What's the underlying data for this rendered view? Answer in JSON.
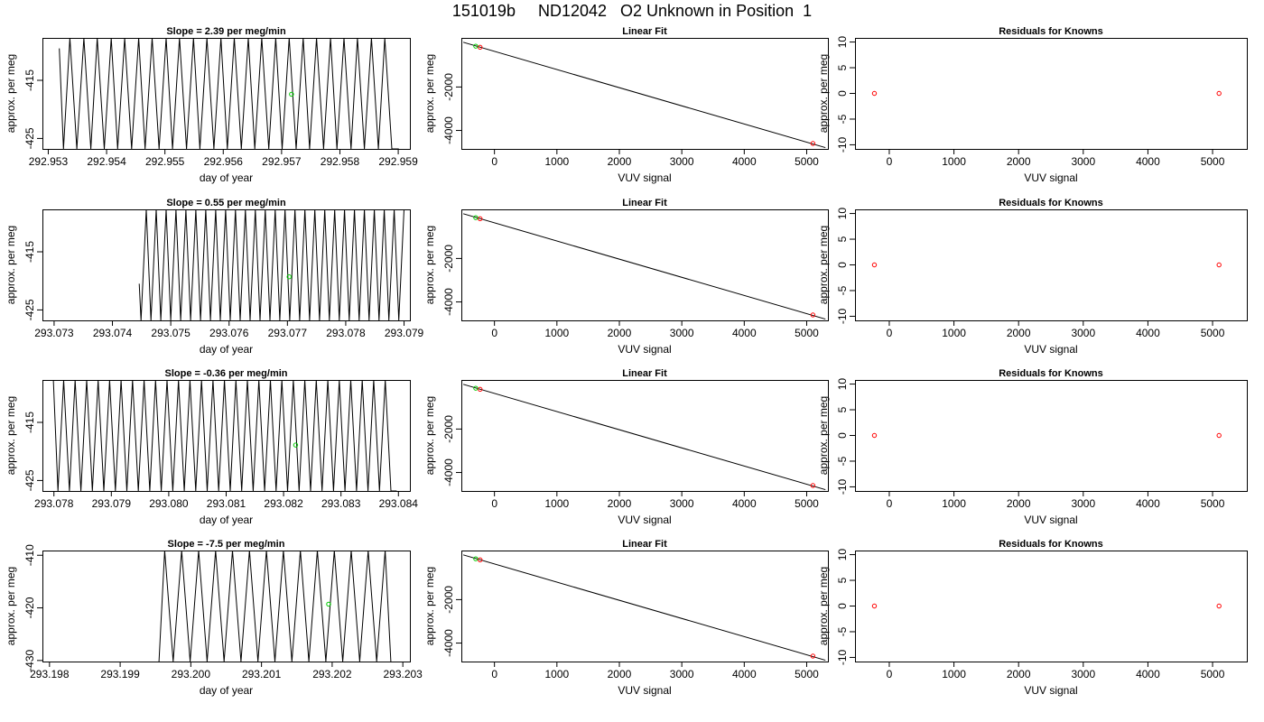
{
  "figure": {
    "title": "151019b     ND12042   O2 Unknown in Position  1"
  },
  "colors": {
    "line": "#000000",
    "known_point": "#ff0000",
    "unknown_point": "#00cc00"
  },
  "chart_data": [
    {
      "type": "line",
      "row": 0,
      "col": 0,
      "title": "Slope =  2.39  per meg/min",
      "xlabel": "day of year",
      "ylabel": "approx. per meg",
      "xlim": [
        292.9529,
        292.9592
      ],
      "ylim": [
        -426.8,
        -407.7
      ],
      "xticks": [
        292.953,
        292.954,
        292.955,
        292.956,
        292.957,
        292.958,
        292.959
      ],
      "xtick_labels": [
        "292.953",
        "292.954",
        "292.955",
        "292.956",
        "292.957",
        "292.958",
        "292.959"
      ],
      "yticks": [
        -425,
        -415
      ],
      "ytick_labels": [
        "-425",
        "-415"
      ],
      "series": [
        {
          "x": [
            292.95319,
            292.95326,
            292.95337,
            292.95349,
            292.95361,
            292.95373,
            292.95384,
            292.95396,
            292.95408,
            292.95419,
            292.95431,
            292.95443,
            292.95455,
            292.95466,
            292.95478,
            292.9549,
            292.95502,
            292.95513,
            292.95525,
            292.95537,
            292.95549,
            292.9556,
            292.95572,
            292.95584,
            292.95596,
            292.95607,
            292.95619,
            292.95631,
            292.95643,
            292.95654,
            292.95666,
            292.95678,
            292.9569,
            292.95701,
            292.95713,
            292.95725,
            292.95737,
            292.95748,
            292.9576,
            292.95772,
            292.95784,
            292.95795,
            292.95807,
            292.95819,
            292.9583,
            292.95842,
            292.95854,
            292.95866,
            292.95877,
            292.95889,
            292.95901
          ],
          "y": [
            -409.5,
            -426.8,
            -407.7,
            -426.8,
            -407.7,
            -426.8,
            -407.7,
            -426.8,
            -407.7,
            -426.8,
            -407.7,
            -426.8,
            -407.7,
            -426.8,
            -407.7,
            -426.8,
            -407.7,
            -426.8,
            -407.7,
            -426.8,
            -407.7,
            -426.8,
            -407.7,
            -426.8,
            -407.7,
            -426.8,
            -407.7,
            -426.8,
            -407.7,
            -426.8,
            -407.7,
            -426.8,
            -407.7,
            -426.8,
            -407.7,
            -426.8,
            -407.7,
            -426.8,
            -407.7,
            -426.8,
            -407.7,
            -426.8,
            -407.7,
            -426.8,
            -407.7,
            -426.8,
            -407.7,
            -426.8,
            -407.7,
            -426.8,
            -426.8
          ]
        }
      ],
      "unknown_point": {
        "x": 292.95717,
        "y": -417.4
      }
    },
    {
      "type": "scatter",
      "row": 0,
      "col": 1,
      "title": "Linear Fit",
      "xlabel": "VUV signal",
      "ylabel": "approx. per meg",
      "xlim": [
        -530,
        5340
      ],
      "ylim": [
        -4850,
        260
      ],
      "xticks": [
        0,
        1000,
        2000,
        3000,
        4000,
        5000
      ],
      "xtick_labels": [
        "0",
        "1000",
        "2000",
        "3000",
        "4000",
        "5000"
      ],
      "yticks": [
        -4000,
        -2000
      ],
      "ytick_labels": [
        "-4000",
        "-2000"
      ],
      "fit_line": {
        "x": [
          -500,
          5300
        ],
        "y": [
          60,
          -4790
        ]
      },
      "known_points": [
        {
          "x": -230,
          "y": -170
        },
        {
          "x": 5100,
          "y": -4600
        }
      ],
      "unknown_point": {
        "x": -300,
        "y": -120
      }
    },
    {
      "type": "scatter",
      "row": 0,
      "col": 2,
      "title": "Residuals for Knowns",
      "xlabel": "VUV signal",
      "ylabel": "approx. per meg",
      "xlim": [
        -530,
        5530
      ],
      "ylim": [
        -10.8,
        10.8
      ],
      "xticks": [
        0,
        1000,
        2000,
        3000,
        4000,
        5000
      ],
      "xtick_labels": [
        "0",
        "1000",
        "2000",
        "3000",
        "4000",
        "5000"
      ],
      "yticks": [
        -10,
        -5,
        0,
        5,
        10
      ],
      "ytick_labels": [
        "-10",
        "-5",
        "0",
        "5",
        "10"
      ],
      "known_points": [
        {
          "x": -230,
          "y": 0
        },
        {
          "x": 5100,
          "y": 0
        }
      ]
    },
    {
      "type": "line",
      "row": 1,
      "col": 0,
      "title": "Slope =  0.55  per meg/min",
      "xlabel": "day of year",
      "ylabel": "approx. per meg",
      "xlim": [
        293.0728,
        293.0791
      ],
      "ylim": [
        -426.8,
        -407.7
      ],
      "xticks": [
        293.073,
        293.074,
        293.075,
        293.076,
        293.077,
        293.078,
        293.079
      ],
      "xtick_labels": [
        "293.073",
        "293.074",
        "293.075",
        "293.076",
        "293.077",
        "293.078",
        "293.079"
      ],
      "yticks": [
        -425,
        -415
      ],
      "ytick_labels": [
        "-425",
        "-415"
      ],
      "series": [
        {
          "x": [
            293.07446,
            293.07449,
            293.07458,
            293.07466,
            293.07475,
            293.07483,
            293.07492,
            293.075,
            293.07509,
            293.07517,
            293.07526,
            293.07534,
            293.07543,
            293.07551,
            293.0756,
            293.07568,
            293.07577,
            293.07585,
            293.07594,
            293.07602,
            293.07611,
            293.07619,
            293.07628,
            293.07636,
            293.07645,
            293.07653,
            293.07662,
            293.0767,
            293.07679,
            293.07687,
            293.07696,
            293.07704,
            293.07713,
            293.07721,
            293.0773,
            293.07738,
            293.07747,
            293.07755,
            293.07764,
            293.07772,
            293.07781,
            293.07789,
            293.07798,
            293.07806,
            293.07815,
            293.07823,
            293.07832,
            293.0784,
            293.07849,
            293.07857,
            293.07866,
            293.07874,
            293.07883,
            293.07891,
            293.079
          ],
          "y": [
            -420.5,
            -426.8,
            -407.7,
            -426.8,
            -407.7,
            -426.8,
            -407.7,
            -426.8,
            -407.7,
            -426.8,
            -407.7,
            -426.8,
            -407.7,
            -426.8,
            -407.7,
            -426.8,
            -407.7,
            -426.8,
            -407.7,
            -426.8,
            -407.7,
            -426.8,
            -407.7,
            -426.8,
            -407.7,
            -426.8,
            -407.7,
            -426.8,
            -407.7,
            -426.8,
            -407.7,
            -426.8,
            -407.7,
            -426.8,
            -407.7,
            -426.8,
            -407.7,
            -426.8,
            -407.7,
            -426.8,
            -407.7,
            -426.8,
            -407.7,
            -426.8,
            -407.7,
            -426.8,
            -407.7,
            -426.8,
            -407.7,
            -426.8,
            -407.7,
            -426.8,
            -407.7,
            -426.8,
            -407.7
          ]
        }
      ],
      "unknown_point": {
        "x": 293.07703,
        "y": -419.3
      }
    },
    {
      "type": "scatter",
      "row": 1,
      "col": 1,
      "title": "Linear Fit",
      "xlabel": "VUV signal",
      "ylabel": "approx. per meg",
      "xlim": [
        -530,
        5340
      ],
      "ylim": [
        -4850,
        260
      ],
      "xticks": [
        0,
        1000,
        2000,
        3000,
        4000,
        5000
      ],
      "xtick_labels": [
        "0",
        "1000",
        "2000",
        "3000",
        "4000",
        "5000"
      ],
      "yticks": [
        -4000,
        -2000
      ],
      "ytick_labels": [
        "-4000",
        "-2000"
      ],
      "fit_line": {
        "x": [
          -500,
          5300
        ],
        "y": [
          60,
          -4790
        ]
      },
      "known_points": [
        {
          "x": -230,
          "y": -170
        },
        {
          "x": 5100,
          "y": -4600
        }
      ],
      "unknown_point": {
        "x": -300,
        "y": -120
      }
    },
    {
      "type": "scatter",
      "row": 1,
      "col": 2,
      "title": "Residuals for Knowns",
      "xlabel": "VUV signal",
      "ylabel": "approx. per meg",
      "xlim": [
        -530,
        5530
      ],
      "ylim": [
        -10.8,
        10.8
      ],
      "xticks": [
        0,
        1000,
        2000,
        3000,
        4000,
        5000
      ],
      "xtick_labels": [
        "0",
        "1000",
        "2000",
        "3000",
        "4000",
        "5000"
      ],
      "yticks": [
        -10,
        -5,
        0,
        5,
        10
      ],
      "ytick_labels": [
        "-10",
        "-5",
        "0",
        "5",
        "10"
      ],
      "known_points": [
        {
          "x": -230,
          "y": 0
        },
        {
          "x": 5100,
          "y": 0
        }
      ]
    },
    {
      "type": "line",
      "row": 2,
      "col": 0,
      "title": "Slope =  -0.36  per meg/min",
      "xlabel": "day of year",
      "ylabel": "approx. per meg",
      "xlim": [
        293.0778,
        293.0842
      ],
      "ylim": [
        -426.8,
        -407.7
      ],
      "xticks": [
        293.078,
        293.079,
        293.08,
        293.081,
        293.082,
        293.083,
        293.084
      ],
      "xtick_labels": [
        "293.078",
        "293.079",
        "293.080",
        "293.081",
        "293.082",
        "293.083",
        "293.084"
      ],
      "yticks": [
        -425,
        -415
      ],
      "ytick_labels": [
        "-425",
        "-415"
      ],
      "series": [
        {
          "x": [
            293.07799,
            293.07807,
            293.07817,
            293.07827,
            293.07837,
            293.07847,
            293.07857,
            293.07867,
            293.07877,
            293.07887,
            293.07897,
            293.07907,
            293.07917,
            293.07927,
            293.07937,
            293.07947,
            293.07957,
            293.07967,
            293.07977,
            293.07987,
            293.07997,
            293.08007,
            293.08017,
            293.08027,
            293.08037,
            293.08047,
            293.08057,
            293.08067,
            293.08077,
            293.08087,
            293.08097,
            293.08107,
            293.08117,
            293.08127,
            293.08137,
            293.08147,
            293.08157,
            293.08167,
            293.08177,
            293.08187,
            293.08197,
            293.08207,
            293.08217,
            293.08227,
            293.08237,
            293.08247,
            293.08257,
            293.08267,
            293.08277,
            293.08287,
            293.08297,
            293.08307,
            293.08317,
            293.08327,
            293.08337,
            293.08347,
            293.08357,
            293.08367,
            293.08377,
            293.08387,
            293.08397
          ],
          "y": [
            -407.7,
            -426.8,
            -407.7,
            -426.8,
            -407.7,
            -426.8,
            -407.7,
            -426.8,
            -407.7,
            -426.8,
            -407.7,
            -426.8,
            -407.7,
            -426.8,
            -407.7,
            -426.8,
            -407.7,
            -426.8,
            -407.7,
            -426.8,
            -407.7,
            -426.8,
            -407.7,
            -426.8,
            -407.7,
            -426.8,
            -407.7,
            -426.8,
            -407.7,
            -426.8,
            -407.7,
            -426.8,
            -407.7,
            -426.8,
            -407.7,
            -426.8,
            -407.7,
            -426.8,
            -407.7,
            -426.8,
            -407.7,
            -426.8,
            -407.7,
            -426.8,
            -407.7,
            -426.8,
            -407.7,
            -426.8,
            -407.7,
            -426.8,
            -407.7,
            -426.8,
            -407.7,
            -426.8,
            -407.7,
            -426.8,
            -407.7,
            -426.8,
            -407.7,
            -426.8,
            -426.8
          ]
        }
      ],
      "unknown_point": {
        "x": 293.08221,
        "y": -418.9
      }
    },
    {
      "type": "scatter",
      "row": 2,
      "col": 1,
      "title": "Linear Fit",
      "xlabel": "VUV signal",
      "ylabel": "approx. per meg",
      "xlim": [
        -530,
        5340
      ],
      "ylim": [
        -4850,
        260
      ],
      "xticks": [
        0,
        1000,
        2000,
        3000,
        4000,
        5000
      ],
      "xtick_labels": [
        "0",
        "1000",
        "2000",
        "3000",
        "4000",
        "5000"
      ],
      "yticks": [
        -4000,
        -2000
      ],
      "ytick_labels": [
        "-4000",
        "-2000"
      ],
      "fit_line": {
        "x": [
          -500,
          5300
        ],
        "y": [
          60,
          -4790
        ]
      },
      "known_points": [
        {
          "x": -230,
          "y": -170
        },
        {
          "x": 5100,
          "y": -4600
        }
      ],
      "unknown_point": {
        "x": -300,
        "y": -120
      }
    },
    {
      "type": "scatter",
      "row": 2,
      "col": 2,
      "title": "Residuals for Knowns",
      "xlabel": "VUV signal",
      "ylabel": "approx. per meg",
      "xlim": [
        -530,
        5530
      ],
      "ylim": [
        -10.8,
        10.8
      ],
      "xticks": [
        0,
        1000,
        2000,
        3000,
        4000,
        5000
      ],
      "xtick_labels": [
        "0",
        "1000",
        "2000",
        "3000",
        "4000",
        "5000"
      ],
      "yticks": [
        -10,
        -5,
        0,
        5,
        10
      ],
      "ytick_labels": [
        "-10",
        "-5",
        "0",
        "5",
        "10"
      ],
      "known_points": [
        {
          "x": -230,
          "y": 0
        },
        {
          "x": 5100,
          "y": 0
        }
      ]
    },
    {
      "type": "line",
      "row": 3,
      "col": 0,
      "title": "Slope =  -7.5  per meg/min",
      "xlabel": "day of year",
      "ylabel": "approx. per meg",
      "xlim": [
        293.1979,
        293.2031
      ],
      "ylim": [
        -430.2,
        -409.1
      ],
      "xticks": [
        293.198,
        293.199,
        293.2,
        293.201,
        293.202,
        293.203
      ],
      "xtick_labels": [
        "293.198",
        "293.199",
        "293.200",
        "293.201",
        "293.202",
        "293.203"
      ],
      "yticks": [
        -430,
        -420,
        -410
      ],
      "ytick_labels": [
        "-430",
        "-420",
        "-410"
      ],
      "series": [
        {
          "x": [
            293.19955,
            293.19963,
            293.19975,
            293.19987,
            293.19999,
            293.20011,
            293.20023,
            293.20035,
            293.20047,
            293.20059,
            293.20071,
            293.20083,
            293.20095,
            293.20107,
            293.20119,
            293.20131,
            293.20143,
            293.20155,
            293.20167,
            293.20179,
            293.20191,
            293.20203,
            293.20215,
            293.20227,
            293.20239,
            293.20251,
            293.20263,
            293.20275,
            293.20283
          ],
          "y": [
            -430.2,
            -409.1,
            -430.2,
            -409.1,
            -430.2,
            -409.1,
            -430.2,
            -409.1,
            -430.2,
            -409.1,
            -430.2,
            -409.1,
            -430.2,
            -409.1,
            -430.2,
            -409.1,
            -430.2,
            -409.1,
            -430.2,
            -409.1,
            -430.2,
            -409.1,
            -430.2,
            -409.1,
            -430.2,
            -409.1,
            -430.2,
            -409.1,
            -430.2
          ]
        }
      ],
      "unknown_point": {
        "x": 293.20195,
        "y": -419.3
      }
    },
    {
      "type": "scatter",
      "row": 3,
      "col": 1,
      "title": "Linear Fit",
      "xlabel": "VUV signal",
      "ylabel": "approx. per meg",
      "xlim": [
        -530,
        5340
      ],
      "ylim": [
        -4850,
        260
      ],
      "xticks": [
        0,
        1000,
        2000,
        3000,
        4000,
        5000
      ],
      "xtick_labels": [
        "0",
        "1000",
        "2000",
        "3000",
        "4000",
        "5000"
      ],
      "yticks": [
        -4000,
        -2000
      ],
      "ytick_labels": [
        "-4000",
        "-2000"
      ],
      "fit_line": {
        "x": [
          -500,
          5300
        ],
        "y": [
          60,
          -4790
        ]
      },
      "known_points": [
        {
          "x": -230,
          "y": -170
        },
        {
          "x": 5100,
          "y": -4600
        }
      ],
      "unknown_point": {
        "x": -300,
        "y": -120
      }
    },
    {
      "type": "scatter",
      "row": 3,
      "col": 2,
      "title": "Residuals for Knowns",
      "xlabel": "VUV signal",
      "ylabel": "approx. per meg",
      "xlim": [
        -530,
        5530
      ],
      "ylim": [
        -10.8,
        10.8
      ],
      "xticks": [
        0,
        1000,
        2000,
        3000,
        4000,
        5000
      ],
      "xtick_labels": [
        "0",
        "1000",
        "2000",
        "3000",
        "4000",
        "5000"
      ],
      "yticks": [
        -10,
        -5,
        0,
        5,
        10
      ],
      "ytick_labels": [
        "-10",
        "-5",
        "0",
        "5",
        "10"
      ],
      "known_points": [
        {
          "x": -230,
          "y": 0
        },
        {
          "x": 5100,
          "y": 0
        }
      ]
    }
  ]
}
